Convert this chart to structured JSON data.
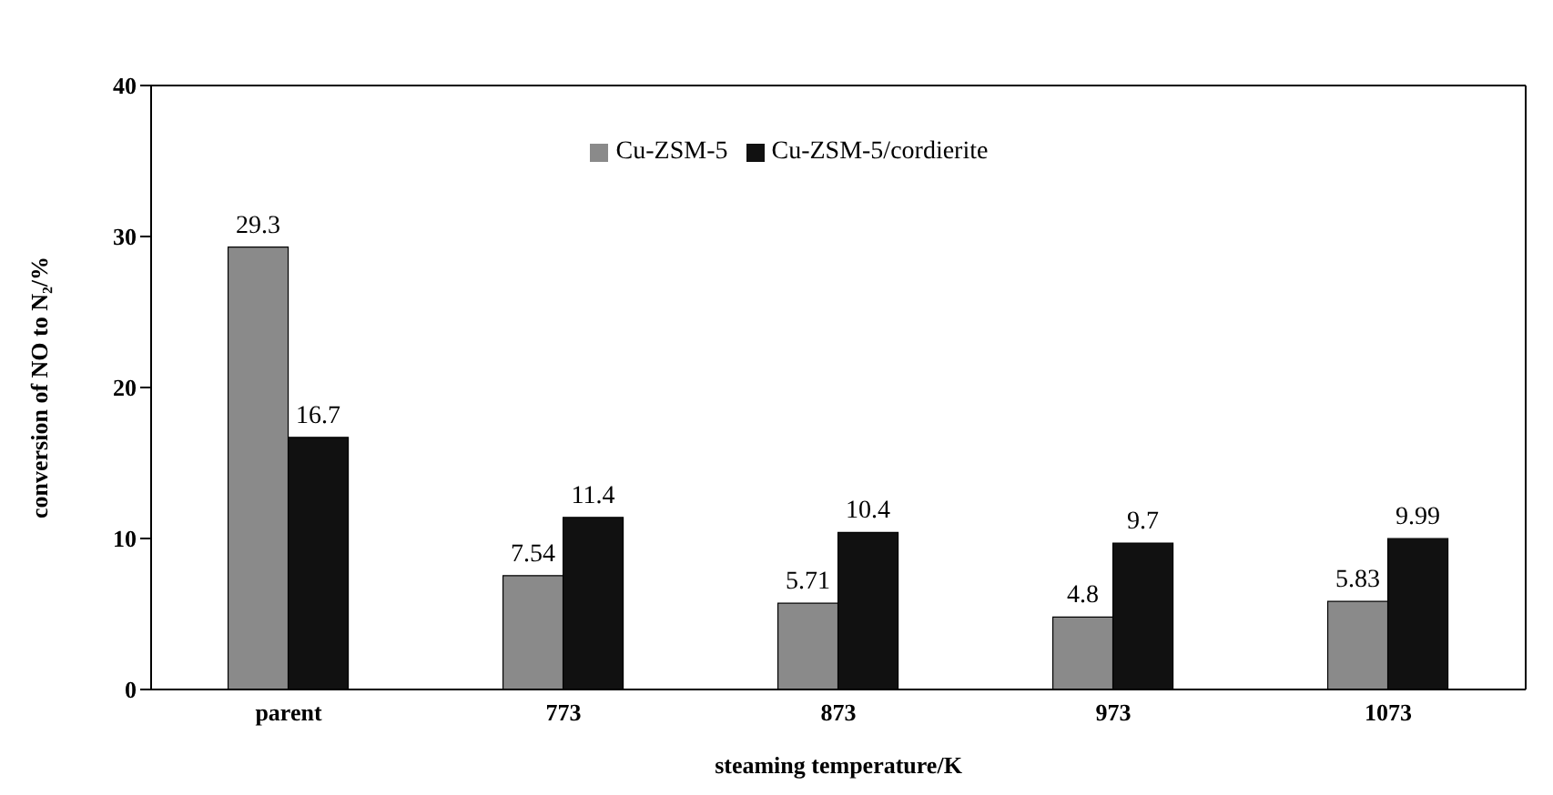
{
  "chart_data": {
    "type": "bar",
    "xlabel": "steaming temperature/K",
    "ylabel": "conversion of NO to N₂/%",
    "categories": [
      "parent",
      "773",
      "873",
      "973",
      "1073"
    ],
    "series": [
      {
        "name": "Cu-ZSM-5",
        "color": "#8a8a8a",
        "values": [
          29.3,
          7.54,
          5.71,
          4.8,
          5.83
        ]
      },
      {
        "name": "Cu-ZSM-5/cordierite",
        "color": "#111111",
        "values": [
          16.7,
          11.4,
          10.4,
          9.7,
          9.99
        ]
      }
    ],
    "ylim": [
      0,
      40
    ],
    "yticks": [
      0,
      10,
      20,
      30,
      40
    ],
    "grid": false,
    "legend": "top",
    "data_labels": true
  }
}
